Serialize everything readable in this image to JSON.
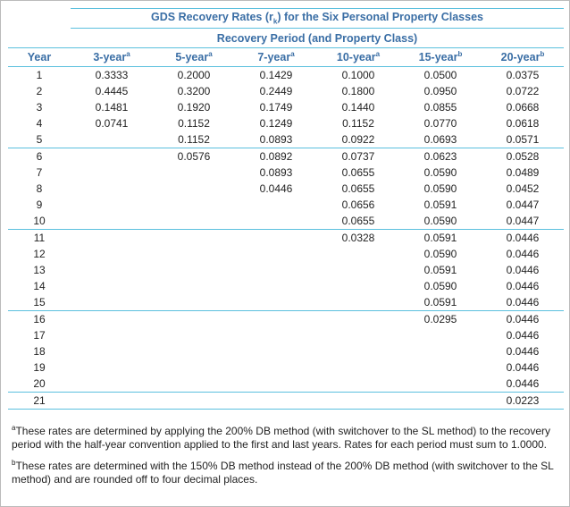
{
  "table": {
    "title": [
      "GDS Recovery Rates (r",
      "k",
      ") for the Six Personal Property Classes"
    ],
    "subtitle": "Recovery Period (and Property Class)",
    "header": [
      {
        "text": "Year"
      },
      {
        "text": "3-year",
        "note": "a"
      },
      {
        "text": "5-year",
        "note": "a"
      },
      {
        "text": "7-year",
        "note": "a"
      },
      {
        "text": "10-year",
        "note": "a"
      },
      {
        "text": "15-year",
        "note": "b"
      },
      {
        "text": "20-year",
        "note": "b"
      }
    ],
    "rows": [
      [
        "1",
        "0.3333",
        "0.2000",
        "0.1429",
        "0.1000",
        "0.0500",
        "0.0375"
      ],
      [
        "2",
        "0.4445",
        "0.3200",
        "0.2449",
        "0.1800",
        "0.0950",
        "0.0722"
      ],
      [
        "3",
        "0.1481",
        "0.1920",
        "0.1749",
        "0.1440",
        "0.0855",
        "0.0668"
      ],
      [
        "4",
        "0.0741",
        "0.1152",
        "0.1249",
        "0.1152",
        "0.0770",
        "0.0618"
      ],
      [
        "5",
        null,
        "0.1152",
        "0.0893",
        "0.0922",
        "0.0693",
        "0.0571"
      ],
      [
        "6",
        null,
        "0.0576",
        "0.0892",
        "0.0737",
        "0.0623",
        "0.0528"
      ],
      [
        "7",
        null,
        null,
        "0.0893",
        "0.0655",
        "0.0590",
        "0.0489"
      ],
      [
        "8",
        null,
        null,
        "0.0446",
        "0.0655",
        "0.0590",
        "0.0452"
      ],
      [
        "9",
        null,
        null,
        null,
        "0.0656",
        "0.0591",
        "0.0447"
      ],
      [
        "10",
        null,
        null,
        null,
        "0.0655",
        "0.0590",
        "0.0447"
      ],
      [
        "11",
        null,
        null,
        null,
        "0.0328",
        "0.0591",
        "0.0446"
      ],
      [
        "12",
        null,
        null,
        null,
        null,
        "0.0590",
        "0.0446"
      ],
      [
        "13",
        null,
        null,
        null,
        null,
        "0.0591",
        "0.0446"
      ],
      [
        "14",
        null,
        null,
        null,
        null,
        "0.0590",
        "0.0446"
      ],
      [
        "15",
        null,
        null,
        null,
        null,
        "0.0591",
        "0.0446"
      ],
      [
        "16",
        null,
        null,
        null,
        null,
        "0.0295",
        "0.0446"
      ],
      [
        "17",
        null,
        null,
        null,
        null,
        null,
        "0.0446"
      ],
      [
        "18",
        null,
        null,
        null,
        null,
        null,
        "0.0446"
      ],
      [
        "19",
        null,
        null,
        null,
        null,
        null,
        "0.0446"
      ],
      [
        "20",
        null,
        null,
        null,
        null,
        null,
        "0.0446"
      ],
      [
        "21",
        null,
        null,
        null,
        null,
        null,
        "0.0223"
      ]
    ],
    "footnotes": [
      {
        "mark": "a",
        "text": "These rates are determined by applying the 200% DB method (with switchover to the SL method) to the recovery period with the half-year convention applied to the first and last years. Rates for each period must sum to 1.0000."
      },
      {
        "mark": "b",
        "text": "These rates are determined with the 150% DB method instead of the 200% DB method (with switchover to the SL method) and are rounded off to four decimal places."
      }
    ]
  }
}
